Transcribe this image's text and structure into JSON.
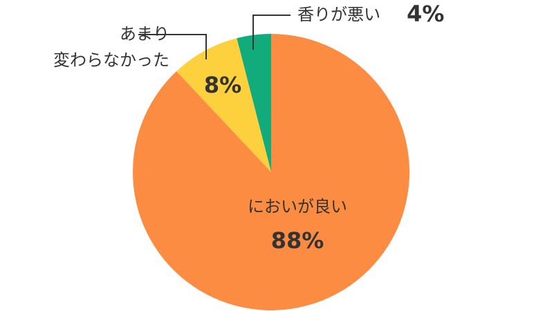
{
  "chart_data": {
    "type": "pie",
    "categories": [
      "においが良い",
      "あまり\n変わらなかった",
      "香りが悪い"
    ],
    "values": [
      88,
      8,
      4
    ],
    "value_labels": [
      "88%",
      "8%",
      "4%"
    ],
    "colors": [
      "#fb8c42",
      "#fdd13e",
      "#12ac7c"
    ]
  }
}
